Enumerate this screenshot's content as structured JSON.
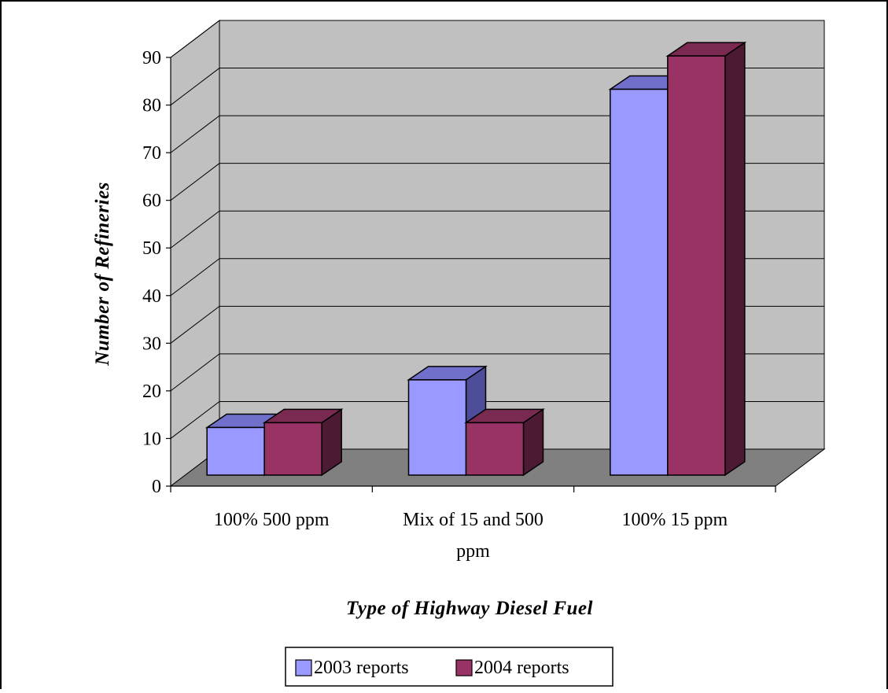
{
  "chart_data": {
    "type": "bar",
    "style": "3d-clustered-column",
    "title": "",
    "xlabel": "Type of Highway Diesel Fuel",
    "ylabel": "Number of Refineries",
    "ylim": [
      0,
      90
    ],
    "yticks": [
      "0",
      "10",
      "20",
      "30",
      "40",
      "50",
      "60",
      "70",
      "80",
      "90"
    ],
    "grid": true,
    "legend_position": "bottom",
    "categories": [
      "100% 500 ppm",
      "Mix of 15 and 500 ppm",
      "100% 15 ppm"
    ],
    "category_lines": [
      [
        "100% 500 ppm"
      ],
      [
        "Mix of 15 and 500",
        "ppm"
      ],
      [
        "100% 15 ppm"
      ]
    ],
    "series": [
      {
        "name": "2003 reports",
        "values": [
          10,
          20,
          81
        ],
        "color": "#9999ff",
        "top": "#7070cc",
        "side": "#4d4d99"
      },
      {
        "name": "2004 reports",
        "values": [
          11,
          11,
          88
        ],
        "color": "#993366",
        "top": "#7a2951",
        "side": "#4d1a33"
      }
    ],
    "colors": {
      "wall": "#c0c0c0",
      "floor": "#808080"
    }
  }
}
